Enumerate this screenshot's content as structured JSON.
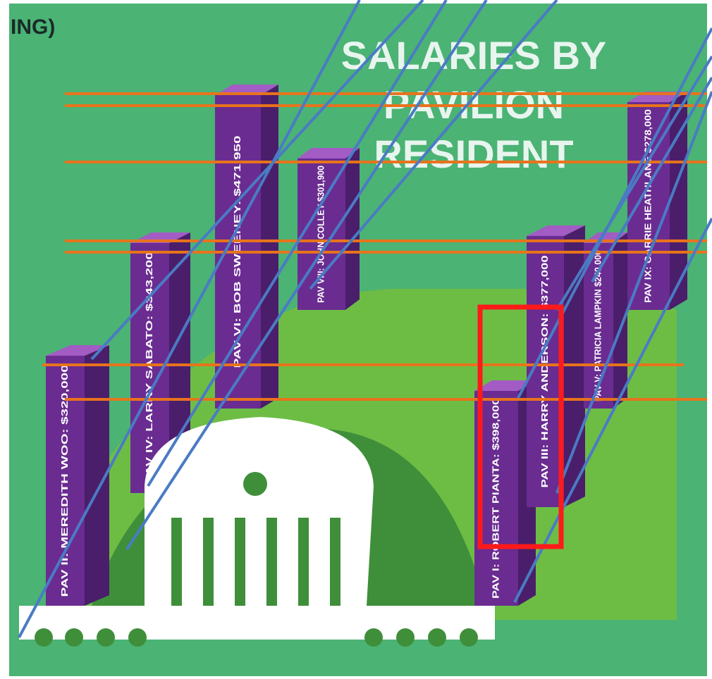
{
  "corner_text": "ING)",
  "title": "SALARIES BY PAVILION RESIDENT",
  "bars": [
    {
      "label": "PAV II: MEREDITH WOO: $320,000"
    },
    {
      "label": "PAV IV: LARRY SABATO: $343,200"
    },
    {
      "label": "PAV VI: BOB SWEENEY: $471,950"
    },
    {
      "label": "PAV VIII: JOHN COLLEY $301,900"
    },
    {
      "label": "PAV I: ROBERT PIANTA: $398,000"
    },
    {
      "label": "PAV III: HARRY ANDERSON: $377,000"
    },
    {
      "label": "PAV V: PATRICIA LAMPKIN $240,000"
    },
    {
      "label": "PAV IX: CARRIE HEATHLANE $278,000"
    }
  ]
}
